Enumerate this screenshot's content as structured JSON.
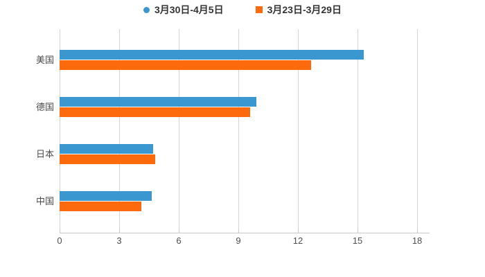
{
  "chart_data": {
    "type": "bar",
    "orientation": "horizontal",
    "title": "",
    "xlabel": "",
    "ylabel": "",
    "categories": [
      "美国",
      "德国",
      "日本",
      "中国"
    ],
    "series": [
      {
        "name": "3月30日-4月5日",
        "marker": "circle",
        "color": "#3a97cf",
        "values": [
          15.3,
          9.9,
          4.7,
          4.65
        ]
      },
      {
        "name": "3月23日-3月29日",
        "marker": "square",
        "color": "#fd6a0d",
        "values": [
          12.65,
          9.6,
          4.8,
          4.1
        ]
      }
    ],
    "x_ticks": [
      0,
      3,
      6,
      9,
      12,
      15,
      18
    ],
    "xlim": [
      0,
      18.6
    ],
    "grid": true,
    "legend_position": "top-center",
    "colors": {
      "gridline": "#d4d4d4",
      "axis_line": "#c9c9c9",
      "tick_label": "#4d4d4d",
      "category_label": "#4a4a4a",
      "legend_text": "#333333",
      "background": "#ffffff"
    }
  }
}
